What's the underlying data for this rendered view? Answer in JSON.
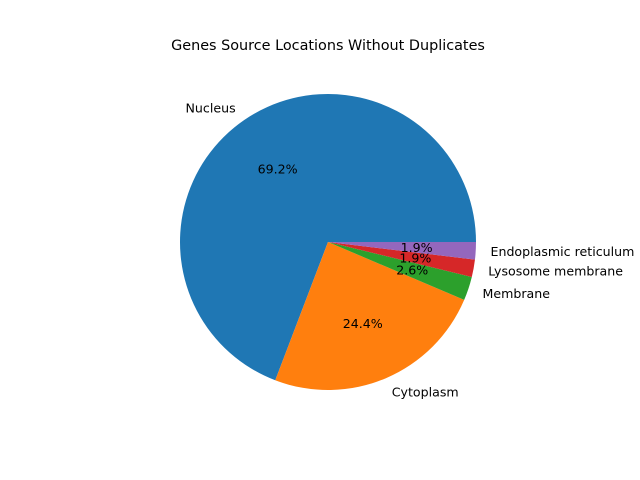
{
  "chart_data": {
    "type": "pie",
    "title": "Genes Source Locations Without Duplicates",
    "start_angle_deg": 0,
    "direction": "counterclockwise",
    "slices": [
      {
        "label": "Nucleus",
        "value": 69.2,
        "pct_label": "69.2%",
        "color": "#1f77b4"
      },
      {
        "label": "Cytoplasm",
        "value": 24.4,
        "pct_label": "24.4%",
        "color": "#ff7f0e"
      },
      {
        "label": "Membrane",
        "value": 2.6,
        "pct_label": "2.6%",
        "color": "#2ca02c"
      },
      {
        "label": "Lysosome membrane",
        "value": 1.9,
        "pct_label": "1.9%",
        "color": "#d62728"
      },
      {
        "label": "Endoplasmic reticulum",
        "value": 1.9,
        "pct_label": "1.9%",
        "color": "#9467bd"
      }
    ]
  }
}
